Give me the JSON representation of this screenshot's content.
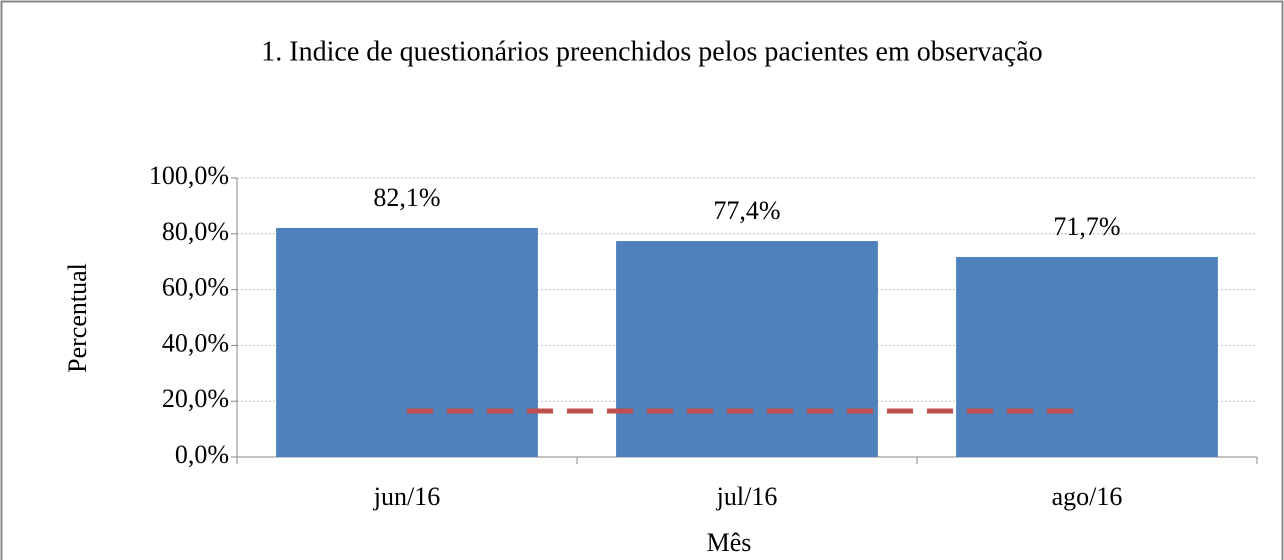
{
  "chart_data": {
    "type": "bar",
    "title": "1. Indice de questionários preenchidos pelos pacientes em observação",
    "xlabel": "Mês",
    "ylabel": "Percentual",
    "categories": [
      "jun/16",
      "jul/16",
      "ago/16"
    ],
    "series": [
      {
        "type": "bar",
        "color": "#4f81bd",
        "values": [
          82.1,
          77.4,
          71.7
        ],
        "value_labels": [
          "82,1%",
          "77,4%",
          "71,7%"
        ]
      },
      {
        "type": "line",
        "color": "#c0504d",
        "dashed": true,
        "values": [
          16.5,
          16.5,
          16.5
        ]
      }
    ],
    "ylim": [
      0,
      100
    ],
    "yticks": [
      {
        "value": 0,
        "label": "0,0%"
      },
      {
        "value": 20,
        "label": "20,0%"
      },
      {
        "value": 40,
        "label": "40,0%"
      },
      {
        "value": 60,
        "label": "60,0%"
      },
      {
        "value": 80,
        "label": "80,0%"
      },
      {
        "value": 100,
        "label": "100,0%"
      }
    ],
    "grid": true
  }
}
